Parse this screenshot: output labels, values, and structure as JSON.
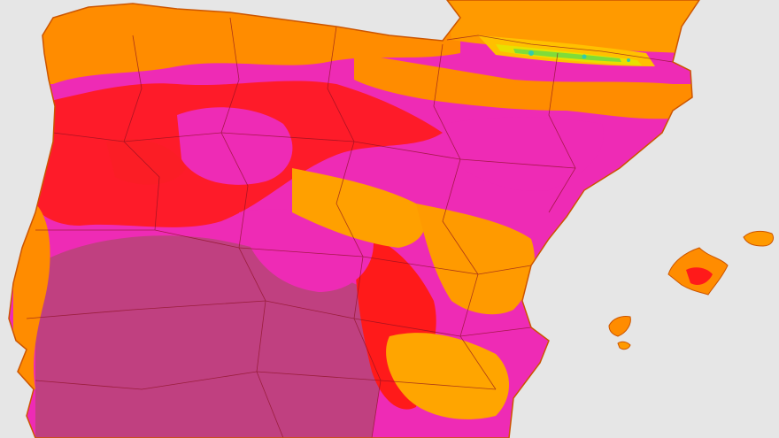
{
  "map": {
    "type": "temperature-heatmap",
    "legend": [],
    "colors": {
      "sea": "#e6e6e6",
      "hottest": "#b8336a",
      "very_hot": "#ee2bb5",
      "hot": "#ff1a1a",
      "warm": "#ff8c00",
      "mild": "#ffb000",
      "cool": "#e8e000",
      "cold": "#7fdc3a",
      "coldest": "#33ccaa",
      "border": "#8a1020"
    },
    "regions": [
      {
        "name": "iberian-peninsula",
        "kind": "land"
      },
      {
        "name": "france-south",
        "kind": "land"
      },
      {
        "name": "mallorca",
        "kind": "island"
      },
      {
        "name": "menorca",
        "kind": "island"
      },
      {
        "name": "ibiza",
        "kind": "island"
      },
      {
        "name": "formentera",
        "kind": "island"
      }
    ]
  }
}
